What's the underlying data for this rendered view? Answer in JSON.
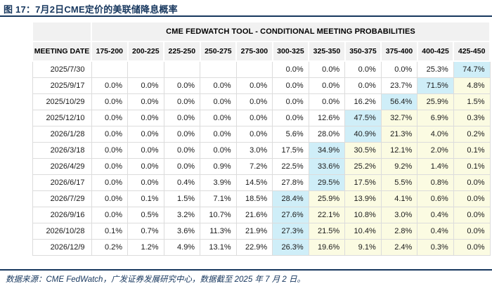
{
  "title": "图 17：7月2日CME定价的美联储降息概率",
  "table": {
    "header": "CME FEDWATCH TOOL - CONDITIONAL MEETING PROBABILITIES",
    "date_col_header": "MEETING DATE",
    "bin_headers": [
      "175-200",
      "200-225",
      "225-250",
      "250-275",
      "275-300",
      "300-325",
      "325-350",
      "350-375",
      "375-400",
      "400-425",
      "425-450"
    ],
    "rows": [
      {
        "date": "2025/7/30",
        "values": [
          "",
          "",
          "",
          "",
          "",
          "0.0%",
          "0.0%",
          "0.0%",
          "0.0%",
          "25.3%",
          "74.7%"
        ],
        "highlights": [
          "",
          "",
          "",
          "",
          "",
          "",
          "",
          "",
          "",
          "",
          "b"
        ]
      },
      {
        "date": "2025/9/17",
        "values": [
          "0.0%",
          "0.0%",
          "0.0%",
          "0.0%",
          "0.0%",
          "0.0%",
          "0.0%",
          "0.0%",
          "23.7%",
          "71.5%",
          "4.8%"
        ],
        "highlights": [
          "",
          "",
          "",
          "",
          "",
          "",
          "",
          "",
          "",
          "b",
          "y"
        ]
      },
      {
        "date": "2025/10/29",
        "values": [
          "0.0%",
          "0.0%",
          "0.0%",
          "0.0%",
          "0.0%",
          "0.0%",
          "0.0%",
          "16.2%",
          "56.4%",
          "25.9%",
          "1.5%"
        ],
        "highlights": [
          "",
          "",
          "",
          "",
          "",
          "",
          "",
          "",
          "b",
          "y",
          "y"
        ]
      },
      {
        "date": "2025/12/10",
        "values": [
          "0.0%",
          "0.0%",
          "0.0%",
          "0.0%",
          "0.0%",
          "0.0%",
          "12.6%",
          "47.5%",
          "32.7%",
          "6.9%",
          "0.3%"
        ],
        "highlights": [
          "",
          "",
          "",
          "",
          "",
          "",
          "",
          "b",
          "y",
          "y",
          "y"
        ]
      },
      {
        "date": "2026/1/28",
        "values": [
          "0.0%",
          "0.0%",
          "0.0%",
          "0.0%",
          "0.0%",
          "5.6%",
          "28.0%",
          "40.9%",
          "21.3%",
          "4.0%",
          "0.2%"
        ],
        "highlights": [
          "",
          "",
          "",
          "",
          "",
          "",
          "",
          "b",
          "y",
          "y",
          "y"
        ]
      },
      {
        "date": "2026/3/18",
        "values": [
          "0.0%",
          "0.0%",
          "0.0%",
          "0.0%",
          "3.0%",
          "17.5%",
          "34.9%",
          "30.5%",
          "12.1%",
          "2.0%",
          "0.1%"
        ],
        "highlights": [
          "",
          "",
          "",
          "",
          "",
          "",
          "b",
          "y",
          "y",
          "y",
          "y"
        ]
      },
      {
        "date": "2026/4/29",
        "values": [
          "0.0%",
          "0.0%",
          "0.0%",
          "0.9%",
          "7.2%",
          "22.5%",
          "33.6%",
          "25.2%",
          "9.2%",
          "1.4%",
          "0.1%"
        ],
        "highlights": [
          "",
          "",
          "",
          "",
          "",
          "",
          "b",
          "y",
          "y",
          "y",
          "y"
        ]
      },
      {
        "date": "2026/6/17",
        "values": [
          "0.0%",
          "0.0%",
          "0.4%",
          "3.9%",
          "14.5%",
          "27.8%",
          "29.5%",
          "17.5%",
          "5.5%",
          "0.8%",
          "0.0%"
        ],
        "highlights": [
          "",
          "",
          "",
          "",
          "",
          "",
          "b",
          "y",
          "y",
          "y",
          "y"
        ]
      },
      {
        "date": "2026/7/29",
        "values": [
          "0.0%",
          "0.1%",
          "1.5%",
          "7.1%",
          "18.5%",
          "28.4%",
          "25.9%",
          "13.9%",
          "4.1%",
          "0.6%",
          "0.0%"
        ],
        "highlights": [
          "",
          "",
          "",
          "",
          "",
          "b",
          "y",
          "y",
          "y",
          "y",
          "y"
        ]
      },
      {
        "date": "2026/9/16",
        "values": [
          "0.0%",
          "0.5%",
          "3.2%",
          "10.7%",
          "21.6%",
          "27.6%",
          "22.1%",
          "10.8%",
          "3.0%",
          "0.4%",
          "0.0%"
        ],
        "highlights": [
          "",
          "",
          "",
          "",
          "",
          "b",
          "y",
          "y",
          "y",
          "y",
          "y"
        ]
      },
      {
        "date": "2026/10/28",
        "values": [
          "0.1%",
          "0.7%",
          "3.6%",
          "11.3%",
          "21.9%",
          "27.3%",
          "21.5%",
          "10.4%",
          "2.8%",
          "0.4%",
          "0.0%"
        ],
        "highlights": [
          "",
          "",
          "",
          "",
          "",
          "b",
          "y",
          "y",
          "y",
          "y",
          "y"
        ]
      },
      {
        "date": "2026/12/9",
        "values": [
          "0.2%",
          "1.2%",
          "4.9%",
          "13.1%",
          "22.9%",
          "26.3%",
          "19.6%",
          "9.1%",
          "2.4%",
          "0.3%",
          "0.0%"
        ],
        "highlights": [
          "",
          "",
          "",
          "",
          "",
          "b",
          "y",
          "y",
          "y",
          "y",
          "y"
        ]
      }
    ]
  },
  "footer": "数据来源：CME FedWatch，广发证券发展研究中心，数据截至 2025 年 7 月 2 日。",
  "colors": {
    "accent_navy": "#17375e",
    "highlight_blue": "#cfeef8",
    "highlight_yellow": "#fbfbe2",
    "header_gray": "#f1f1f1",
    "grid_gray": "#dcdcdc"
  }
}
